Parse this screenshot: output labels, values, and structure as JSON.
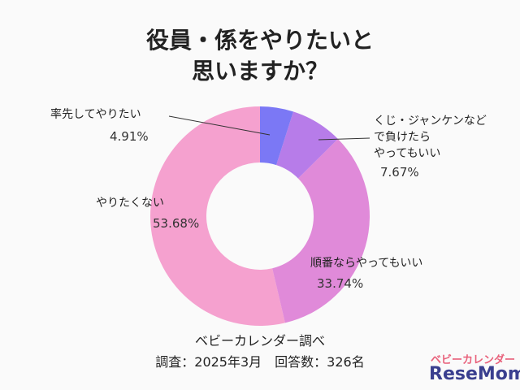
{
  "chart_data": {
    "type": "donut",
    "title": [
      "役員・係をやりたいと",
      "思いますか？"
    ],
    "categories": [
      "率先してやりたい",
      "くじ・ジャンケンなど\nで負けたら\nやってもいい",
      "順番ならやってもいい",
      "やりたくない"
    ],
    "values": [
      4.91,
      7.67,
      33.74,
      53.68
    ],
    "value_labels": [
      "4.91%",
      "7.67%",
      "33.74%",
      "53.68%"
    ],
    "colors": [
      "#7b78f5",
      "#b77ce9",
      "#e08ad9",
      "#f5a1cf"
    ],
    "source": "ベビーカレンダー調べ",
    "survey": "調査：2025年3月　回答数：326名"
  },
  "logo": [
    "ベビーカレンダー",
    "ReseMom"
  ]
}
